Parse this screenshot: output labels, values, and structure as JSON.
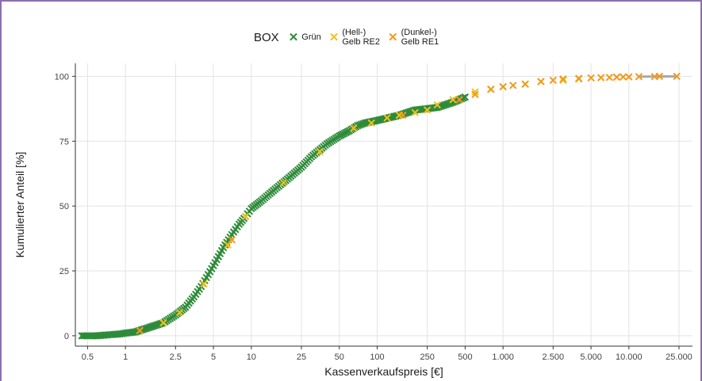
{
  "chart_data": {
    "type": "scatter",
    "xscale": "log",
    "xlabel": "Kassenverkaufspreis [€]",
    "ylabel": "Kumulierter Anteil [%]",
    "xlim": [
      0.4,
      32000
    ],
    "ylim": [
      -4,
      105
    ],
    "grid": true,
    "x_ticks": [
      0.5,
      1,
      2.5,
      5,
      10,
      25,
      50,
      100,
      250,
      500,
      1000,
      2500,
      5000,
      10000,
      25000
    ],
    "x_tick_labels": [
      "0.5",
      "1",
      "2.5",
      "5",
      "10",
      "25",
      "50",
      "100",
      "250",
      "500",
      "1.000",
      "2.500",
      "5.000",
      "10.000",
      "25.000"
    ],
    "y_ticks": [
      0,
      25,
      50,
      75,
      100
    ],
    "y_tick_labels": [
      "0",
      "25",
      "50",
      "75",
      "100"
    ],
    "legend": {
      "title": "BOX",
      "placement": "top",
      "items": [
        {
          "label": "Grün",
          "color": "#2e8b3a"
        },
        {
          "label": "(Hell-)\nGelb RE2",
          "color": "#f2c21d"
        },
        {
          "label": "(Dunkel-)\nGelb RE1",
          "color": "#f39a1d"
        }
      ]
    },
    "series": [
      {
        "name": "Grün",
        "color": "#2e8b3a",
        "x": [
          0.45,
          0.5,
          0.55,
          0.6,
          0.7,
          0.8,
          0.9,
          1.0,
          1.2,
          1.5,
          2.0,
          2.5,
          3.0,
          3.5,
          4.0,
          5.0,
          6.0,
          7.0,
          8.0,
          9.0,
          10,
          12,
          15,
          20,
          25,
          30,
          40,
          50,
          60,
          70,
          80,
          100,
          150,
          200,
          300,
          400,
          500
        ],
        "y": [
          0,
          0,
          0,
          0,
          0.3,
          0.5,
          0.7,
          1,
          1.5,
          3,
          5,
          8,
          11,
          15,
          19,
          27,
          34,
          39,
          43,
          46,
          49,
          52,
          56,
          61,
          65,
          69,
          74,
          77,
          79,
          81,
          82,
          83,
          85,
          87,
          88,
          90,
          92
        ]
      },
      {
        "name": "(Hell-) Gelb RE2",
        "color": "#f2c21d",
        "x": [
          1.3,
          2.0,
          2.7,
          4.2,
          6.5,
          9,
          18,
          35,
          65,
          90,
          120,
          150,
          200,
          250,
          300,
          400,
          600,
          800,
          1000,
          1500,
          2000,
          3000,
          4000
        ],
        "y": [
          2,
          5,
          9,
          20,
          35,
          46,
          59,
          71,
          80,
          82,
          84,
          85,
          86,
          87,
          89,
          91,
          94,
          95,
          96,
          97,
          98,
          98.5,
          99
        ]
      },
      {
        "name": "(Dunkel-) Gelb RE1",
        "color": "#f39a1d",
        "x": [
          1.3,
          7,
          160,
          450,
          600,
          800,
          1000,
          1200,
          1500,
          2000,
          2500,
          3000,
          4000,
          5000,
          6000,
          7000,
          8000,
          9000,
          10000,
          12000,
          16000,
          17500,
          24000
        ],
        "y": [
          2,
          37,
          85,
          91,
          93,
          95,
          96,
          96.5,
          97,
          98,
          98.5,
          99,
          99.2,
          99.4,
          99.5,
          99.6,
          99.7,
          99.8,
          99.8,
          99.9,
          99.9,
          100,
          100
        ]
      }
    ]
  }
}
